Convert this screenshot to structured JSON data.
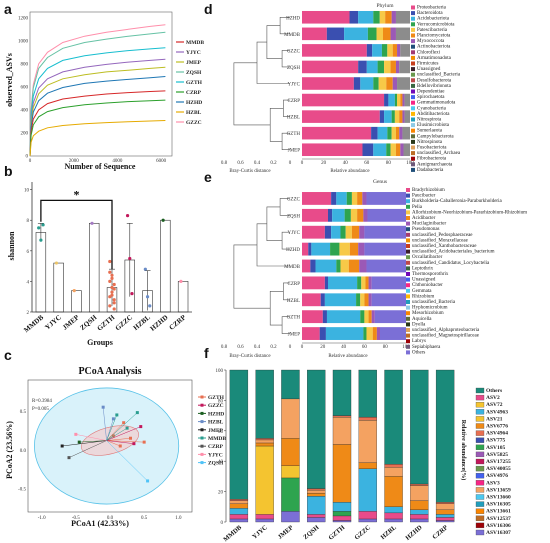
{
  "panels": {
    "a": {
      "label": "a",
      "xlabel": "Number of Sequence",
      "ylabel": "observed_ASVs",
      "xticks": [
        "0",
        "2000",
        "4000",
        "6000"
      ],
      "yticks": [
        "0",
        "200",
        "400",
        "600",
        "800",
        "1000",
        "1200"
      ]
    },
    "b": {
      "label": "b",
      "xlabel": "Groups",
      "ylabel": "shannon",
      "significance": "*",
      "yticks": [
        "2",
        "4",
        "6",
        "8",
        "10"
      ]
    },
    "c": {
      "label": "c",
      "title": "PCoA Analysis",
      "stats_r": "R=0.3984",
      "stats_p": "P=0.005",
      "xlabel": "PCoA1 (42.33%)",
      "ylabel": "PCoA2 (23.56%)",
      "xticks": [
        "-1.0",
        "-0.5",
        "0.0",
        "0.5",
        "1.0"
      ],
      "yticks": [
        "-0.5",
        "0.0",
        "0.5"
      ]
    },
    "d": {
      "label": "d",
      "title": "Phylum",
      "xlabel_tree": "Bray-Curtis distance",
      "xlabel_bars": "Relative abundance",
      "tree_ticks": [
        "0.8",
        "0.6",
        "0.4",
        "0.2",
        "0"
      ],
      "bar_ticks": [
        "0",
        "20",
        "40",
        "60",
        "80",
        "100"
      ]
    },
    "e": {
      "label": "e",
      "title": "Genus",
      "xlabel_tree": "Bray-Curtis distance",
      "xlabel_bars": "Relative abundance",
      "tree_ticks": [
        "0.8",
        "0.6",
        "0.4",
        "0.2",
        "0"
      ],
      "bar_ticks": [
        "0",
        "20",
        "40",
        "60",
        "80",
        "100"
      ]
    },
    "f": {
      "label": "f",
      "ylabel": "Relative abundance(%)",
      "yticks": [
        "0",
        "20",
        "40",
        "60",
        "80",
        "100"
      ]
    }
  },
  "group_colors": {
    "MMDB": "#2a9d8f",
    "YJYC": "#e9c46a",
    "JMEP": "#f4a261",
    "ZQSH": "#a57ac4",
    "GZTH": "#e76f51",
    "GZZC": "#c2185b",
    "HZBL": "#6a8cc7",
    "HZHD": "#1b5e20",
    "CZRP": "#ff8fab"
  },
  "chart_data": [
    {
      "panel": "a",
      "type": "line",
      "xlabel": "Number of Sequence",
      "ylabel": "observed_ASVs",
      "xlim": [
        0,
        6500
      ],
      "ylim": [
        0,
        1250
      ],
      "x": [
        0,
        50,
        150,
        400,
        800,
        1500,
        2500,
        3500,
        4500,
        5500,
        6200
      ],
      "series": [
        {
          "name": "GZZC",
          "color": "#ff8fab",
          "values": [
            0,
            400,
            620,
            800,
            900,
            985,
            1040,
            1075,
            1100,
            1125,
            1140
          ]
        },
        {
          "name": "ZQSH",
          "color": "#66c2a5",
          "values": [
            0,
            380,
            590,
            760,
            855,
            935,
            985,
            1015,
            1040,
            1060,
            1075
          ]
        },
        {
          "name": "GZTH",
          "color": "#17becf",
          "values": [
            0,
            340,
            520,
            670,
            760,
            830,
            870,
            895,
            915,
            930,
            940
          ]
        },
        {
          "name": "YJYC",
          "color": "#9467bd",
          "values": [
            0,
            300,
            460,
            590,
            670,
            730,
            770,
            795,
            815,
            830,
            840
          ]
        },
        {
          "name": "JMEP",
          "color": "#bcbd22",
          "values": [
            0,
            280,
            420,
            540,
            615,
            670,
            705,
            730,
            745,
            760,
            770
          ]
        },
        {
          "name": "HZHD",
          "color": "#1f77b4",
          "values": [
            0,
            250,
            380,
            480,
            545,
            595,
            630,
            650,
            665,
            680,
            690
          ]
        },
        {
          "name": "MMDB",
          "color": "#d62728",
          "values": [
            0,
            210,
            320,
            400,
            455,
            495,
            520,
            538,
            550,
            560,
            565
          ]
        },
        {
          "name": "CZRP",
          "color": "#2ca02c",
          "values": [
            0,
            180,
            270,
            340,
            385,
            420,
            445,
            460,
            472,
            480,
            485
          ]
        },
        {
          "name": "HZBL",
          "color": "#e6ab02",
          "values": [
            0,
            120,
            175,
            215,
            245,
            265,
            280,
            290,
            298,
            304,
            308
          ]
        }
      ],
      "legend": [
        "MMDB",
        "YJYC",
        "JMEP",
        "ZQSH",
        "GZTH",
        "CZRP",
        "HZHD",
        "HZBL",
        "GZZC"
      ]
    },
    {
      "panel": "b",
      "type": "bar",
      "xlabel": "Groups",
      "ylabel": "shannon",
      "ylim": [
        2,
        10.5
      ],
      "categories": [
        "MMDB",
        "YJYC",
        "JMEP",
        "ZQSH",
        "GZTH",
        "GZZC",
        "HZBL",
        "HZHD",
        "CZRP"
      ],
      "values": [
        7.2,
        5.2,
        3.4,
        7.8,
        3.6,
        5.4,
        3.4,
        8.0,
        4.0
      ],
      "errors": [
        0.6,
        0,
        0,
        0,
        1.2,
        2.4,
        1.3,
        0,
        0
      ],
      "points": [
        [
          7.5,
          6.7,
          7.7
        ],
        [
          5.2
        ],
        [
          3.4
        ],
        [
          7.8
        ],
        [
          3.0,
          4.2,
          2.2,
          5.3,
          3.6,
          2.8,
          4.0,
          3.3,
          2.6,
          4.6,
          3.1,
          3.8,
          2.4,
          4.4,
          3.5
        ],
        [
          8.3,
          5.5,
          3.2
        ],
        [
          4.8,
          3.0,
          2.4
        ],
        [
          8.0
        ],
        [
          4.0
        ]
      ],
      "significance": {
        "between": [
          "MMDB",
          "GZTH"
        ],
        "label": "*"
      }
    },
    {
      "panel": "c",
      "type": "scatter",
      "title": "PCoA Analysis",
      "xlabel": "PCoA1 (42.33%)",
      "ylabel": "PCoA2 (23.56%)",
      "xlim": [
        -1.2,
        1.2
      ],
      "ylim": [
        -0.8,
        0.9
      ],
      "centroid": [
        -0.05,
        0.12
      ],
      "groups": [
        {
          "name": "GZTH",
          "color": "#e76f51",
          "x": [
            0.3,
            0.15,
            0.05,
            0.5,
            0.2
          ],
          "y": [
            0.15,
            0.05,
            0.18,
            0.1,
            0.35
          ]
        },
        {
          "name": "GZZC",
          "color": "#c2185b",
          "x": [
            0.35,
            0.45
          ],
          "y": [
            0.08,
            0.3
          ]
        },
        {
          "name": "HZHD",
          "color": "#1b5e20",
          "x": [
            -0.45
          ],
          "y": [
            0.1
          ]
        },
        {
          "name": "HZBL",
          "color": "#6a8cc7",
          "x": [
            -0.1,
            0.05
          ],
          "y": [
            0.55,
            0.4
          ]
        },
        {
          "name": "JMEP",
          "color": "#222222",
          "x": [
            -0.7
          ],
          "y": [
            0.05
          ]
        },
        {
          "name": "MMDB",
          "color": "#2a9d8f",
          "x": [
            0.1,
            0.25,
            0.4
          ],
          "y": [
            0.45,
            0.28,
            0.48
          ]
        },
        {
          "name": "CZRP",
          "color": "#555555",
          "x": [
            -0.6
          ],
          "y": [
            -0.1
          ]
        },
        {
          "name": "YJYC",
          "color": "#ff8fab",
          "x": [
            -0.5
          ],
          "y": [
            0.2
          ]
        },
        {
          "name": "ZQSH",
          "color": "#4fc3f7",
          "x": [
            0.55
          ],
          "y": [
            -0.4
          ]
        }
      ]
    },
    {
      "panel": "d",
      "type": "bar",
      "orientation": "horizontal-stacked",
      "title": "Phylum",
      "categories": [
        "HZHD",
        "MMDB",
        "GZZC",
        "ZQSH",
        "YJYC",
        "CZRP",
        "HZBL",
        "GZTH",
        "JMEP"
      ],
      "series": [
        {
          "name": "Proteobacteria",
          "color": "#e84b8a",
          "values": [
            44,
            23,
            60,
            52,
            48,
            76,
            72,
            64,
            56
          ]
        },
        {
          "name": "Bacteroidota",
          "color": "#3a4fb0",
          "values": [
            8,
            16,
            5,
            8,
            6,
            4,
            4,
            6,
            10
          ]
        },
        {
          "name": "Acidobacteriota",
          "color": "#3bb3e0",
          "values": [
            14,
            22,
            9,
            10,
            12,
            6,
            7,
            9,
            12
          ]
        },
        {
          "name": "Verrucomicrobiota",
          "color": "#2ea44f",
          "values": [
            6,
            8,
            5,
            6,
            5,
            2,
            3,
            4,
            4
          ]
        },
        {
          "name": "Patescibacteria",
          "color": "#f7c948",
          "values": [
            5,
            6,
            5,
            6,
            7,
            3,
            4,
            4,
            5
          ]
        },
        {
          "name": "Planctomycetota",
          "color": "#ef8a17",
          "values": [
            6,
            7,
            4,
            5,
            6,
            2,
            3,
            3,
            4
          ]
        },
        {
          "name": "Myxococcota",
          "color": "#9b59b6",
          "values": [
            4,
            5,
            3,
            3,
            4,
            2,
            2,
            3,
            3
          ]
        },
        {
          "name": "Others",
          "color": "#8c8c8c",
          "values": [
            13,
            13,
            9,
            10,
            12,
            5,
            5,
            7,
            6
          ]
        }
      ],
      "legend": [
        "Proteobacteria",
        "Bacteroidota",
        "Acidobacteriota",
        "Verrucomicrobiota",
        "Patescibacteria",
        "Planctomycetota",
        "Myxococcota",
        "Actinobacteriota",
        "Chloroflexi",
        "Armatimonadota",
        "Firmicutes",
        "Unassigned",
        "unclassified_Bacteria",
        "Desulfobacterota",
        "Bdellovibrionota",
        "Dependentiae",
        "Spirochaetota",
        "Gemmatimonadota",
        "Cyanobacteria",
        "Abditibacteriota",
        "Nitrospirota",
        "Elusimicrobiota",
        "Sumerlaeota",
        "Campylobacterota",
        "Nitrospinota",
        "Fusobacteriota",
        "unclassified_Archaea",
        "Fibrobacterota",
        "Aenigmarchaeota",
        "Dadabacteria"
      ]
    },
    {
      "panel": "e",
      "type": "bar",
      "orientation": "horizontal-stacked",
      "title": "Genus",
      "categories": [
        "GZZC",
        "ZQSH",
        "YJYC",
        "HZHD",
        "MMDB",
        "CZRP",
        "HZBL",
        "GZTH",
        "JMEP"
      ],
      "series": [
        {
          "name": "Bradyrhizobium",
          "color": "#e84b8a",
          "values": [
            28,
            25,
            22,
            6,
            8,
            22,
            18,
            20,
            17
          ]
        },
        {
          "name": "Paucibacter",
          "color": "#3a4fb0",
          "values": [
            5,
            4,
            6,
            3,
            5,
            3,
            4,
            4,
            6
          ]
        },
        {
          "name": "Burkholderia-Caballeronia-Paraburkholderia",
          "color": "#3bb3e0",
          "values": [
            10,
            12,
            9,
            18,
            20,
            28,
            30,
            32,
            36
          ]
        },
        {
          "name": "Pelia",
          "color": "#2ea44f",
          "values": [
            5,
            6,
            5,
            9,
            4,
            4,
            4,
            4,
            3
          ]
        },
        {
          "name": "Allorhizobium-Neorhizobium-Pararhizobium-Rhizobium",
          "color": "#f7c948",
          "values": [
            5,
            6,
            6,
            10,
            8,
            4,
            4,
            4,
            6
          ]
        },
        {
          "name": "Acidibacter",
          "color": "#ef8a17",
          "values": [
            5,
            6,
            7,
            8,
            10,
            3,
            4,
            3,
            4
          ]
        },
        {
          "name": "Mucilaginibacter",
          "color": "#9b59b6",
          "values": [
            4,
            4,
            5,
            6,
            7,
            3,
            3,
            3,
            3
          ]
        },
        {
          "name": "Others",
          "color": "#7b6fd6",
          "values": [
            38,
            37,
            40,
            40,
            38,
            33,
            33,
            30,
            25
          ]
        }
      ],
      "legend": [
        "Bradyrhizobium",
        "Paucibacter",
        "Burkholderia-Caballeronia-Paraburkholderia",
        "Pelia",
        "Allorhizobium-Neorhizobium-Pararhizobium-Rhizobium",
        "Acidibacter",
        "Mucilaginibacter",
        "Pseudomonas",
        "unclassified_Pedosphaeraceae",
        "unclassified_Moraxellaceae",
        "unclassified_Xanthobacteraceae",
        "unclassified_Acidobacteriales_bacterium",
        "Occallatibacter",
        "unclassified_Candidatus_Locybactelia",
        "Leptothrix",
        "Thermosporothrix",
        "Unassigned",
        "Chthoniobacter",
        "Gemmata",
        "Rhizobium",
        "unclassified_Bacteria",
        "Hyphomicrobium",
        "Mesorhizobium",
        "Aquicella",
        "Dyella",
        "unclassified_Alphaproteobacteria",
        "unclassified_Magnetospirillaceae",
        "Labrys",
        "Sepiabiphaera",
        "Others"
      ]
    },
    {
      "panel": "f",
      "type": "bar",
      "orientation": "vertical-stacked",
      "ylabel": "Relative abundance(%)",
      "ylim": [
        0,
        100
      ],
      "categories": [
        "MMDB",
        "YJYC",
        "JMEP",
        "ZQSH",
        "GZTH",
        "GZZC",
        "HZBL",
        "HZHD",
        "CZRP"
      ],
      "series": [
        {
          "name": "ASV16307",
          "color": "#7b6fd6",
          "values": [
            2,
            2,
            7,
            3,
            1,
            2,
            2,
            2,
            1
          ]
        },
        {
          "name": "ASV2",
          "color": "#e84b8a",
          "values": [
            3,
            3,
            0,
            2,
            3,
            5,
            4,
            3,
            2
          ]
        },
        {
          "name": "ASV105",
          "color": "#2ea44f",
          "values": [
            0,
            0,
            22,
            0,
            3,
            0,
            0,
            0,
            0
          ]
        },
        {
          "name": "ASV72",
          "color": "#f4c430",
          "values": [
            0,
            45,
            8,
            0,
            0,
            0,
            0,
            0,
            0
          ]
        },
        {
          "name": "ASV4963",
          "color": "#3bb3e0",
          "values": [
            4,
            0,
            0,
            12,
            6,
            28,
            4,
            3,
            2
          ]
        },
        {
          "name": "ASV6776",
          "color": "#ef8a17",
          "values": [
            3,
            2,
            18,
            2,
            38,
            4,
            20,
            6,
            3
          ]
        },
        {
          "name": "ASV13659",
          "color": "#f4a261",
          "values": [
            2,
            2,
            26,
            2,
            18,
            28,
            6,
            10,
            4
          ]
        },
        {
          "name": "ASV4964",
          "color": "#e76f51",
          "values": [
            1,
            1,
            0,
            1,
            1,
            2,
            2,
            1,
            1
          ]
        },
        {
          "name": "Others",
          "color": "#1a8a7a",
          "values": [
            85,
            45,
            19,
            78,
            30,
            31,
            62,
            75,
            87
          ]
        }
      ],
      "legend": [
        "Others",
        "ASV2",
        "ASV72",
        "ASV4963",
        "ASV21",
        "ASV6776",
        "ASV4964",
        "ASV775",
        "ASV105",
        "ASV5825",
        "ASV17255",
        "ASV40055",
        "ASV4976",
        "ASV3",
        "ASV13659",
        "ASV13660",
        "ASV16305",
        "ASV13661",
        "ASV12537",
        "ASV16306",
        "ASV16307"
      ]
    }
  ]
}
